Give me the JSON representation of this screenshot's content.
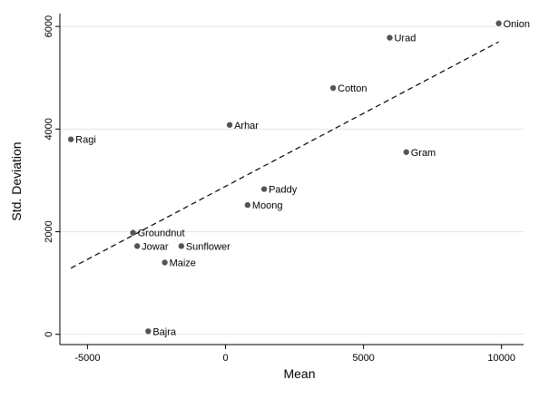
{
  "chart_data": {
    "type": "scatter",
    "xlabel": "Mean",
    "ylabel": "Std. Deviation",
    "xlim": [
      -6000,
      10800
    ],
    "ylim": [
      -200,
      6250
    ],
    "x_ticks": [
      -5000,
      0,
      5000,
      10000
    ],
    "y_ticks": [
      0,
      2000,
      4000,
      6000
    ],
    "grid": "horizontal",
    "point_color": "#555555",
    "line_color": "#000000",
    "points": [
      {
        "label": "Onion",
        "x": 9900,
        "y": 6060
      },
      {
        "label": "Urad",
        "x": 5950,
        "y": 5780
      },
      {
        "label": "Cotton",
        "x": 3900,
        "y": 4800
      },
      {
        "label": "Arhar",
        "x": 150,
        "y": 4080
      },
      {
        "label": "Ragi",
        "x": -5600,
        "y": 3800
      },
      {
        "label": "Gram",
        "x": 6550,
        "y": 3550
      },
      {
        "label": "Paddy",
        "x": 1400,
        "y": 2830
      },
      {
        "label": "Moong",
        "x": 800,
        "y": 2520
      },
      {
        "label": "Groundnut",
        "x": -3350,
        "y": 1980
      },
      {
        "label": "Jowar",
        "x": -3200,
        "y": 1720
      },
      {
        "label": "Sunflower",
        "x": -1600,
        "y": 1720
      },
      {
        "label": "Maize",
        "x": -2200,
        "y": 1400
      },
      {
        "label": "Bajra",
        "x": -2800,
        "y": 60
      }
    ],
    "fit_line": {
      "style": "dashed",
      "x": [
        -5600,
        9900
      ],
      "y": [
        1290,
        5700
      ]
    }
  }
}
